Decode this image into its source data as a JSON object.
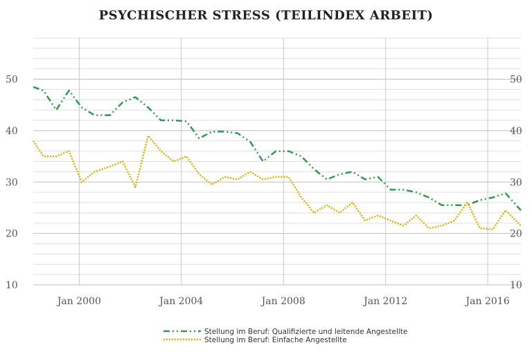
{
  "chart_data": {
    "type": "line",
    "title": "PSYCHISCHER STRESS (TEILINDEX ARBEIT)",
    "xlabel": "",
    "ylabel": "",
    "x_ticks": [
      "Jan 2000",
      "Jan 2004",
      "Jan 2008",
      "Jan 2012",
      "Jan 2016"
    ],
    "y_ticks": [
      10,
      20,
      30,
      40,
      50
    ],
    "ylim": [
      10,
      58
    ],
    "xlim": [
      1998.2,
      2017.3
    ],
    "grid": true,
    "legend_position": "bottom",
    "series": [
      {
        "name": "Stellung im Beruf: Qualifizierte und leitende Angestellte",
        "color": "#2e9a4e",
        "style": "dash-dot",
        "x": [
          1998.2,
          1998.6,
          1999.1,
          1999.6,
          2000.1,
          2000.6,
          2001.2,
          2001.7,
          2002.2,
          2002.7,
          2003.2,
          2003.7,
          2004.2,
          2004.7,
          2005.2,
          2005.7,
          2006.2,
          2006.7,
          2007.2,
          2007.7,
          2008.2,
          2008.7,
          2009.2,
          2009.7,
          2010.2,
          2010.7,
          2011.2,
          2011.7,
          2012.2,
          2012.7,
          2013.2,
          2013.7,
          2014.2,
          2014.7,
          2015.2,
          2015.7,
          2016.2,
          2016.7,
          2017.3
        ],
        "y": [
          48.5,
          47.8,
          44,
          47.8,
          44.5,
          43,
          43,
          45.5,
          46.5,
          44.5,
          42,
          42,
          41.8,
          38.5,
          39.8,
          39.8,
          39.5,
          37.8,
          34,
          36,
          36,
          35,
          32.5,
          30.5,
          31.5,
          32,
          30.5,
          31,
          28.5,
          28.5,
          28,
          27,
          25.5,
          25.5,
          25.5,
          26.5,
          27,
          27.8,
          24.5
        ]
      },
      {
        "name": "Stellung im Beruf: Einfache Angestellte",
        "color": "#d9b000",
        "style": "dotted",
        "x": [
          1998.2,
          1998.6,
          1999.1,
          1999.6,
          2000.1,
          2000.6,
          2001.2,
          2001.7,
          2002.2,
          2002.7,
          2003.2,
          2003.7,
          2004.2,
          2004.7,
          2005.2,
          2005.7,
          2006.2,
          2006.7,
          2007.2,
          2007.7,
          2008.2,
          2008.7,
          2009.2,
          2009.7,
          2010.2,
          2010.7,
          2011.2,
          2011.7,
          2012.2,
          2012.7,
          2013.2,
          2013.7,
          2014.2,
          2014.7,
          2015.2,
          2015.7,
          2016.2,
          2016.7,
          2017.3
        ],
        "y": [
          38,
          35,
          35,
          36,
          30,
          32,
          33,
          34,
          29,
          39,
          36,
          34,
          35,
          31.5,
          29.5,
          31,
          30.5,
          32,
          30.5,
          31,
          31,
          27,
          24,
          25.5,
          24,
          26,
          22.5,
          23.5,
          22.5,
          21.5,
          23.5,
          21,
          21.5,
          22.5,
          26,
          21,
          20.8,
          24.5,
          21.5
        ]
      }
    ]
  }
}
